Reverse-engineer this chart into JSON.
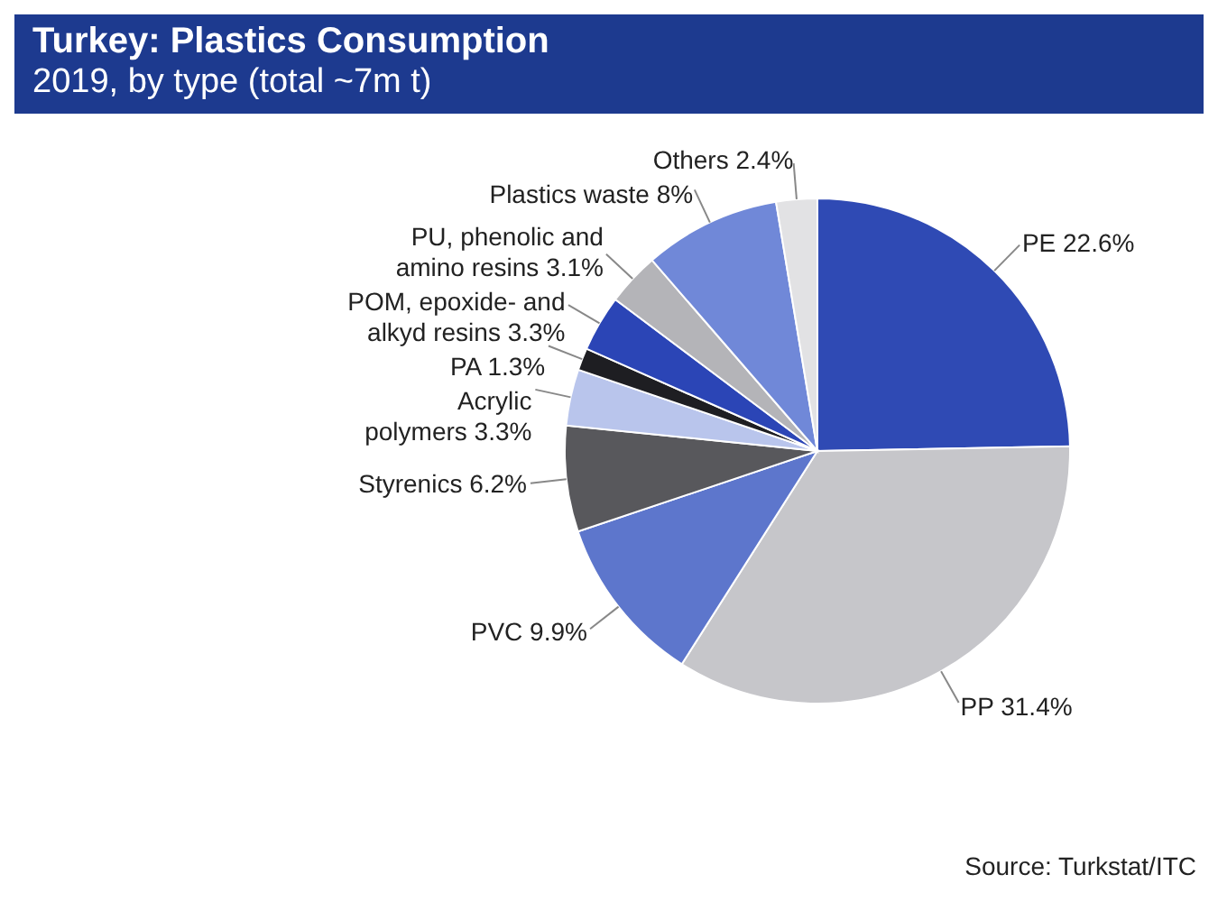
{
  "chart_data": {
    "type": "pie",
    "title": "Turkey: Plastics Consumption",
    "subtitle": "2019, by type (total ~7m t)",
    "categories": [
      "PE",
      "PP",
      "PVC",
      "Styrenics",
      "Acrylic polymers",
      "PA",
      "POM, epoxide- and alkyd resins",
      "PU, phenolic and amino resins",
      "Plastics waste",
      "Others"
    ],
    "values": [
      22.6,
      31.4,
      9.9,
      6.2,
      3.3,
      1.3,
      3.3,
      3.1,
      8,
      2.4
    ],
    "value_labels": [
      "22.6%",
      "31.4%",
      "9.9%",
      "6.2%",
      "3.3%",
      "1.3%",
      "3.3%",
      "3.1%",
      "8%",
      "2.4%"
    ],
    "colors": [
      "#2f4ab4",
      "#c6c6ca",
      "#5d76cc",
      "#58585c",
      "#b9c5ec",
      "#1e1e22",
      "#2b45b6",
      "#b4b4b8",
      "#7088d8",
      "#e2e2e4"
    ],
    "annotations": [
      "Source: Turkstat/ITC"
    ]
  }
}
